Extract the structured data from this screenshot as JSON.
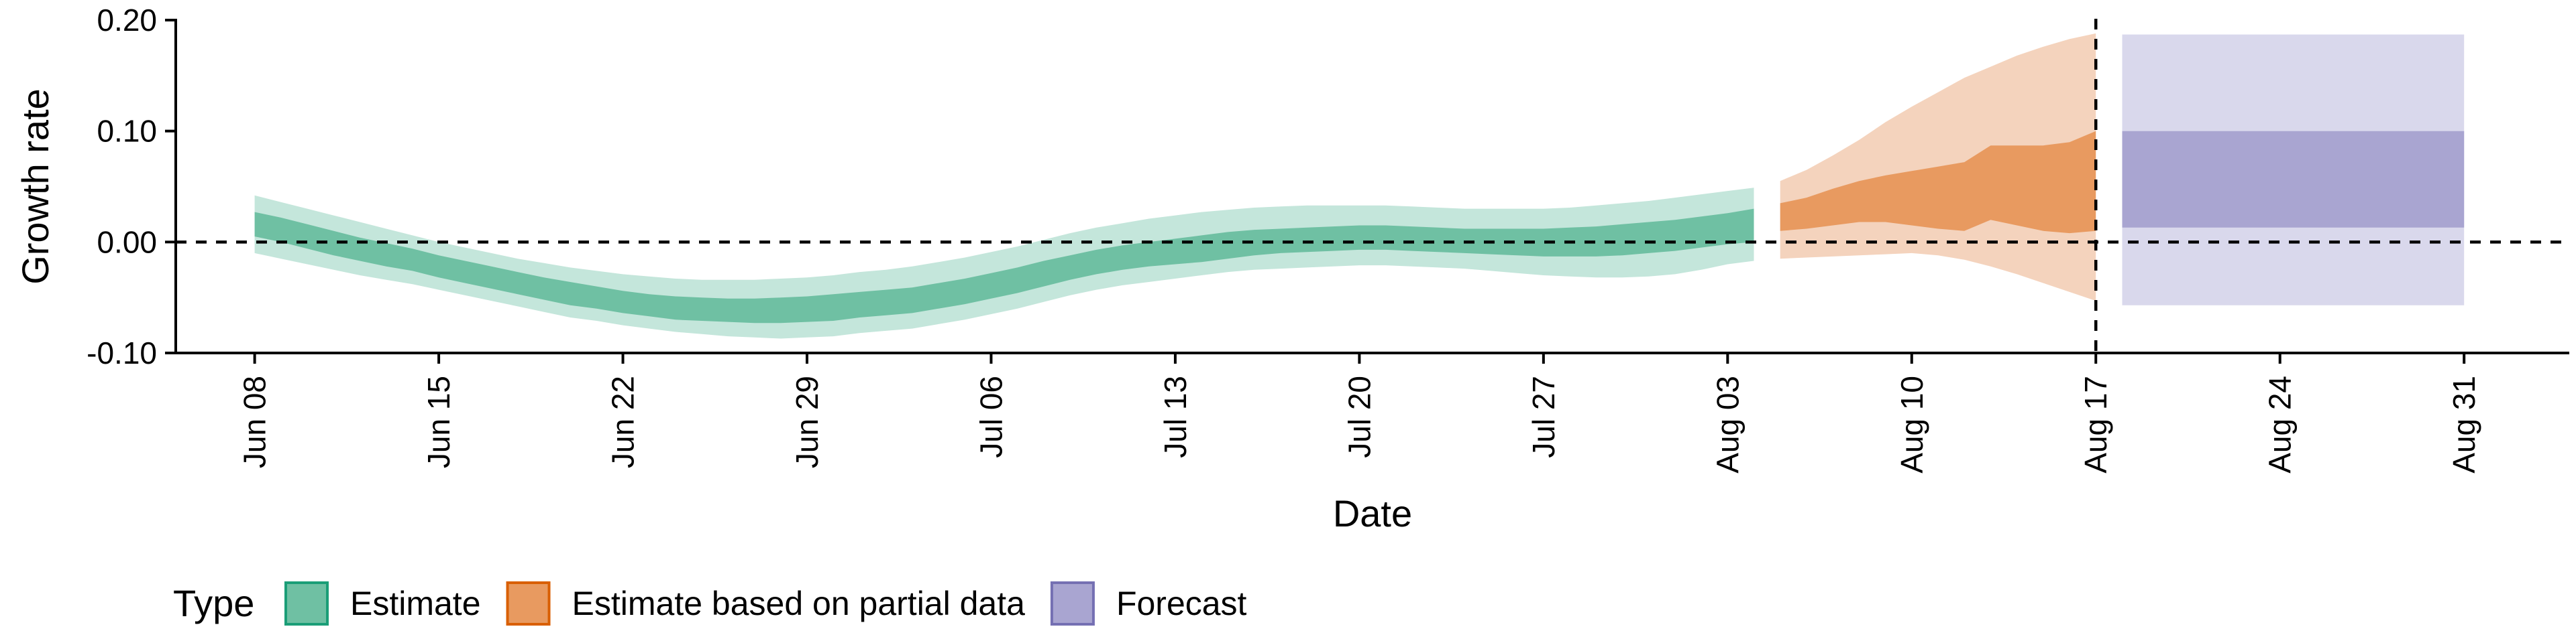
{
  "chart_data": {
    "type": "area",
    "xlabel": "Date",
    "ylabel": "Growth rate",
    "ylim": [
      -0.1,
      0.2
    ],
    "yticks": [
      -0.1,
      0.0,
      0.1,
      0.2
    ],
    "ytick_labels": [
      "-0.10",
      "0.00",
      "0.10",
      "0.20"
    ],
    "xlim": [
      "2020-06-05",
      "2020-09-04"
    ],
    "xticks": [
      "2020-06-08",
      "2020-06-15",
      "2020-06-22",
      "2020-06-29",
      "2020-07-06",
      "2020-07-13",
      "2020-07-20",
      "2020-07-27",
      "2020-08-03",
      "2020-08-10",
      "2020-08-17",
      "2020-08-24",
      "2020-08-31"
    ],
    "xtick_labels": [
      "Jun 08",
      "Jun 15",
      "Jun 22",
      "Jun 29",
      "Jul 06",
      "Jul 13",
      "Jul 20",
      "Jul 27",
      "Aug 03",
      "Aug 10",
      "Aug 17",
      "Aug 24",
      "Aug 31"
    ],
    "reference_lines": {
      "horizontal_y": 0.0,
      "vertical_x": "2020-08-17",
      "style": "dashed"
    },
    "legend": {
      "title": "Type",
      "placement": "bottom-left",
      "entries": [
        "Estimate",
        "Estimate based on partial data",
        "Forecast"
      ]
    },
    "series": [
      {
        "name": "Estimate",
        "color_outer": "#c4e6db",
        "color_inner": "#6fc0a3",
        "x": [
          "2020-06-08",
          "2020-06-09",
          "2020-06-10",
          "2020-06-11",
          "2020-06-12",
          "2020-06-13",
          "2020-06-14",
          "2020-06-15",
          "2020-06-16",
          "2020-06-17",
          "2020-06-18",
          "2020-06-19",
          "2020-06-20",
          "2020-06-21",
          "2020-06-22",
          "2020-06-23",
          "2020-06-24",
          "2020-06-25",
          "2020-06-26",
          "2020-06-27",
          "2020-06-28",
          "2020-06-29",
          "2020-06-30",
          "2020-07-01",
          "2020-07-02",
          "2020-07-03",
          "2020-07-04",
          "2020-07-05",
          "2020-07-06",
          "2020-07-07",
          "2020-07-08",
          "2020-07-09",
          "2020-07-10",
          "2020-07-11",
          "2020-07-12",
          "2020-07-13",
          "2020-07-14",
          "2020-07-15",
          "2020-07-16",
          "2020-07-17",
          "2020-07-18",
          "2020-07-19",
          "2020-07-20",
          "2020-07-21",
          "2020-07-22",
          "2020-07-23",
          "2020-07-24",
          "2020-07-25",
          "2020-07-26",
          "2020-07-27",
          "2020-07-28",
          "2020-07-29",
          "2020-07-30",
          "2020-07-31",
          "2020-08-01",
          "2020-08-02",
          "2020-08-03",
          "2020-08-04"
        ],
        "outer_lower": [
          -0.01,
          -0.015,
          -0.02,
          -0.025,
          -0.03,
          -0.034,
          -0.038,
          -0.043,
          -0.048,
          -0.053,
          -0.058,
          -0.063,
          -0.068,
          -0.071,
          -0.075,
          -0.078,
          -0.081,
          -0.083,
          -0.085,
          -0.086,
          -0.087,
          -0.086,
          -0.085,
          -0.082,
          -0.08,
          -0.078,
          -0.074,
          -0.07,
          -0.065,
          -0.06,
          -0.054,
          -0.048,
          -0.043,
          -0.039,
          -0.036,
          -0.033,
          -0.03,
          -0.027,
          -0.025,
          -0.024,
          -0.023,
          -0.022,
          -0.021,
          -0.021,
          -0.022,
          -0.023,
          -0.024,
          -0.026,
          -0.028,
          -0.03,
          -0.031,
          -0.032,
          -0.032,
          -0.031,
          -0.029,
          -0.025,
          -0.02,
          -0.017
        ],
        "inner_lower": [
          0.005,
          0.0,
          -0.006,
          -0.012,
          -0.017,
          -0.022,
          -0.026,
          -0.032,
          -0.037,
          -0.042,
          -0.047,
          -0.052,
          -0.057,
          -0.06,
          -0.064,
          -0.067,
          -0.07,
          -0.071,
          -0.072,
          -0.073,
          -0.073,
          -0.072,
          -0.071,
          -0.068,
          -0.066,
          -0.064,
          -0.06,
          -0.056,
          -0.051,
          -0.046,
          -0.04,
          -0.034,
          -0.029,
          -0.025,
          -0.022,
          -0.02,
          -0.018,
          -0.015,
          -0.012,
          -0.01,
          -0.009,
          -0.008,
          -0.007,
          -0.007,
          -0.008,
          -0.009,
          -0.01,
          -0.011,
          -0.012,
          -0.013,
          -0.013,
          -0.013,
          -0.012,
          -0.01,
          -0.008,
          -0.005,
          -0.002,
          0.0
        ],
        "inner_upper": [
          0.027,
          0.022,
          0.016,
          0.01,
          0.004,
          -0.001,
          -0.006,
          -0.012,
          -0.017,
          -0.022,
          -0.027,
          -0.032,
          -0.036,
          -0.04,
          -0.044,
          -0.047,
          -0.049,
          -0.05,
          -0.051,
          -0.051,
          -0.05,
          -0.049,
          -0.047,
          -0.045,
          -0.043,
          -0.041,
          -0.037,
          -0.033,
          -0.028,
          -0.023,
          -0.017,
          -0.012,
          -0.007,
          -0.003,
          0.0,
          0.003,
          0.006,
          0.009,
          0.011,
          0.012,
          0.013,
          0.014,
          0.015,
          0.015,
          0.014,
          0.013,
          0.012,
          0.012,
          0.012,
          0.012,
          0.013,
          0.014,
          0.016,
          0.018,
          0.02,
          0.023,
          0.026,
          0.03
        ],
        "outer_upper": [
          0.042,
          0.036,
          0.03,
          0.024,
          0.018,
          0.012,
          0.006,
          0.0,
          -0.005,
          -0.01,
          -0.015,
          -0.019,
          -0.023,
          -0.026,
          -0.029,
          -0.031,
          -0.033,
          -0.034,
          -0.034,
          -0.034,
          -0.033,
          -0.032,
          -0.03,
          -0.027,
          -0.025,
          -0.022,
          -0.018,
          -0.014,
          -0.009,
          -0.004,
          0.002,
          0.008,
          0.013,
          0.017,
          0.021,
          0.024,
          0.027,
          0.029,
          0.031,
          0.032,
          0.033,
          0.033,
          0.033,
          0.033,
          0.032,
          0.031,
          0.03,
          0.03,
          0.03,
          0.03,
          0.031,
          0.033,
          0.035,
          0.037,
          0.04,
          0.043,
          0.046,
          0.049
        ]
      },
      {
        "name": "Estimate based on partial data",
        "color_outer": "#f4d3bd",
        "color_inner": "#e89a60",
        "x": [
          "2020-08-05",
          "2020-08-06",
          "2020-08-07",
          "2020-08-08",
          "2020-08-09",
          "2020-08-10",
          "2020-08-11",
          "2020-08-12",
          "2020-08-13",
          "2020-08-14",
          "2020-08-15",
          "2020-08-16",
          "2020-08-17"
        ],
        "outer_lower": [
          -0.015,
          -0.014,
          -0.013,
          -0.012,
          -0.011,
          -0.01,
          -0.012,
          -0.016,
          -0.022,
          -0.029,
          -0.037,
          -0.045,
          -0.053
        ],
        "inner_lower": [
          0.01,
          0.012,
          0.015,
          0.018,
          0.018,
          0.015,
          0.012,
          0.01,
          0.02,
          0.015,
          0.01,
          0.008,
          0.01
        ],
        "inner_upper": [
          0.035,
          0.04,
          0.048,
          0.055,
          0.06,
          0.064,
          0.068,
          0.072,
          0.087,
          0.087,
          0.087,
          0.09,
          0.1
        ],
        "outer_upper": [
          0.055,
          0.065,
          0.078,
          0.092,
          0.108,
          0.122,
          0.135,
          0.148,
          0.158,
          0.168,
          0.176,
          0.183,
          0.188
        ]
      },
      {
        "name": "Forecast",
        "color_outer": "#d9d8ec",
        "color_inner": "#a9a5d1",
        "x": [
          "2020-08-18",
          "2020-08-31"
        ],
        "outer_lower": [
          -0.057,
          -0.057
        ],
        "inner_lower": [
          0.013,
          0.013
        ],
        "inner_upper": [
          0.1,
          0.1
        ],
        "outer_upper": [
          0.187,
          0.187
        ]
      }
    ]
  }
}
